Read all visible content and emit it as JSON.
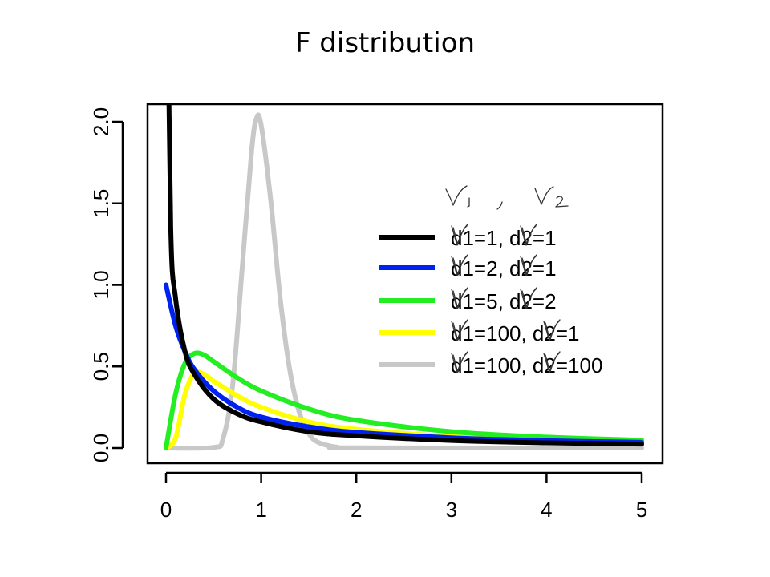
{
  "title": "F distribution",
  "handwriting": {
    "header_glyphs": [
      "ν1",
      ",",
      "ν2"
    ],
    "overwrite_glyph": "ν"
  },
  "chart_data": {
    "type": "line",
    "title": "F distribution",
    "xlabel": "",
    "ylabel": "",
    "xlim": [
      0,
      5
    ],
    "ylim": [
      0,
      2
    ],
    "x_ticks": [
      "0",
      "1",
      "2",
      "3",
      "4",
      "5"
    ],
    "y_ticks": [
      "0.0",
      "0.5",
      "1.0",
      "1.5",
      "2.0"
    ],
    "grid": false,
    "legend_position": "top-right",
    "series": [
      {
        "name": "d1=1, d2=1",
        "d1": 1,
        "d2": 1,
        "color": "#000000",
        "x": [
          0.01,
          0.05,
          0.1,
          0.2,
          0.3,
          0.5,
          0.75,
          1,
          1.5,
          2,
          3,
          4,
          5
        ],
        "y": [
          3.15,
          1.35,
          0.92,
          0.59,
          0.45,
          0.3,
          0.21,
          0.16,
          0.1,
          0.075,
          0.046,
          0.032,
          0.024
        ]
      },
      {
        "name": "d1=2, d2=1",
        "d1": 2,
        "d2": 1,
        "color": "#0022ee",
        "x": [
          0,
          0.1,
          0.2,
          0.3,
          0.5,
          0.75,
          1,
          1.5,
          2,
          3,
          4,
          5
        ],
        "y": [
          1.0,
          0.75,
          0.59,
          0.48,
          0.35,
          0.25,
          0.19,
          0.13,
          0.096,
          0.063,
          0.045,
          0.035
        ]
      },
      {
        "name": "d1=5, d2=2",
        "d1": 5,
        "d2": 2,
        "color": "#22ee22",
        "x": [
          0,
          0.1,
          0.2,
          0.3,
          0.4,
          0.5,
          0.75,
          1,
          1.5,
          2,
          3,
          4,
          5
        ],
        "y": [
          0,
          0.33,
          0.52,
          0.58,
          0.57,
          0.53,
          0.43,
          0.35,
          0.24,
          0.17,
          0.1,
          0.067,
          0.048
        ]
      },
      {
        "name": "d1=100, d2=1",
        "d1": 100,
        "d2": 1,
        "color": "#ffff00",
        "x": [
          0,
          0.1,
          0.2,
          0.3,
          0.4,
          0.5,
          0.75,
          1,
          1.5,
          2,
          3,
          4,
          5
        ],
        "y": [
          0,
          0.06,
          0.33,
          0.46,
          0.45,
          0.41,
          0.32,
          0.25,
          0.16,
          0.115,
          0.07,
          0.048,
          0.036
        ]
      },
      {
        "name": "d1=100, d2=100",
        "d1": 100,
        "d2": 100,
        "color": "#c8c8c8",
        "x": [
          0,
          0.5,
          0.6,
          0.7,
          0.8,
          0.9,
          0.95,
          1.0,
          1.1,
          1.2,
          1.3,
          1.4,
          1.5,
          1.6,
          1.8,
          2,
          5
        ],
        "y": [
          0,
          0.004,
          0.06,
          0.38,
          1.1,
          1.82,
          2.02,
          1.98,
          1.52,
          0.92,
          0.48,
          0.22,
          0.09,
          0.035,
          0.005,
          0.001,
          0
        ]
      }
    ]
  }
}
